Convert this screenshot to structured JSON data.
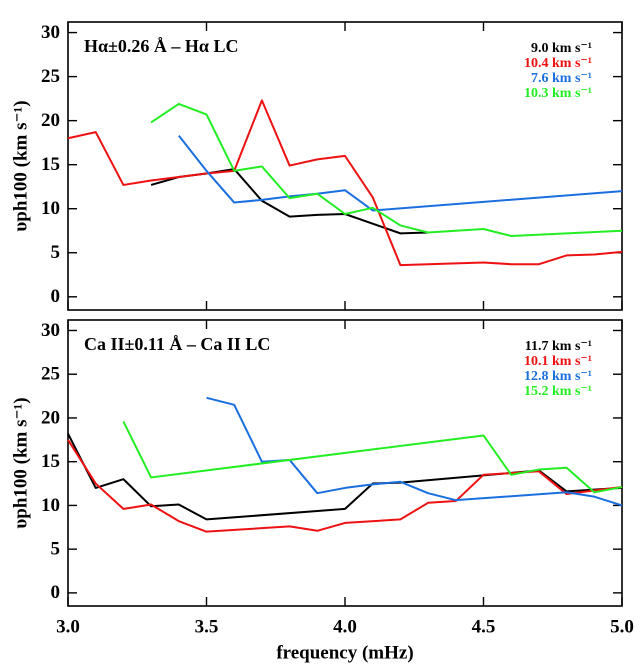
{
  "chart_data": [
    {
      "type": "line",
      "title": "Hα±0.26 Å – Hα LC",
      "ylabel": "υph100 (km s⁻¹)",
      "xlim": [
        3,
        5
      ],
      "xticks": [
        3,
        3.5,
        4,
        4.5,
        5
      ],
      "ylim": [
        -1.5,
        31.2
      ],
      "yticks": [
        0,
        5,
        10,
        15,
        20,
        25,
        30
      ],
      "series": [
        {
          "name": "9.0 km s⁻¹",
          "color": "#000000",
          "x": [
            3.3,
            3.4,
            3.5,
            3.6,
            3.7,
            3.8,
            3.9,
            4.0,
            4.1,
            4.2,
            4.3
          ],
          "values": [
            12.7,
            13.6,
            14.0,
            14.5,
            10.9,
            9.1,
            9.3,
            9.4,
            8.3,
            7.2,
            7.3
          ]
        },
        {
          "name": "10.4 km s⁻¹",
          "color": "#ee1111",
          "x": [
            3.0,
            3.1,
            3.2,
            3.3,
            3.4,
            3.5,
            3.6,
            3.7,
            3.8,
            3.9,
            4.0,
            4.1,
            4.2,
            4.3,
            4.4,
            4.5,
            4.6,
            4.7,
            4.8,
            4.9,
            5.0
          ],
          "values": [
            18.0,
            18.7,
            12.7,
            13.2,
            13.6,
            14.0,
            14.3,
            22.3,
            14.9,
            15.6,
            16.0,
            11.3,
            3.6,
            3.7,
            3.8,
            3.9,
            3.7,
            3.7,
            4.7,
            4.8,
            5.1
          ]
        },
        {
          "name": "7.6 km s⁻¹",
          "color": "#1a6fdf",
          "x": [
            3.4,
            3.5,
            3.6,
            3.7,
            3.8,
            3.9,
            4.0,
            4.1,
            5.0
          ],
          "values": [
            18.3,
            14.3,
            10.7,
            11.0,
            11.4,
            11.7,
            12.1,
            9.8,
            12.0
          ]
        },
        {
          "name": "10.3 km s⁻¹",
          "color": "#22ee22",
          "x": [
            3.3,
            3.4,
            3.5,
            3.6,
            3.7,
            3.8,
            3.9,
            4.0,
            4.1,
            4.2,
            4.3,
            4.5,
            4.6,
            5.0
          ],
          "values": [
            19.8,
            21.9,
            20.7,
            14.3,
            14.8,
            11.2,
            11.7,
            9.4,
            10.1,
            8.1,
            7.3,
            7.7,
            6.9,
            7.5
          ]
        }
      ]
    },
    {
      "type": "line",
      "title": "Ca II±0.11 Å – Ca II LC",
      "ylabel": "υph100 (km s⁻¹)",
      "xlabel": "frequency (mHz)",
      "xlim": [
        3,
        5
      ],
      "xticks": [
        {
          "value": 3,
          "label": "3.0"
        },
        {
          "value": 3.5,
          "label": "3.5"
        },
        {
          "value": 4,
          "label": "4.0"
        },
        {
          "value": 4.5,
          "label": "4.5"
        },
        {
          "value": 5,
          "label": "5.0"
        }
      ],
      "ylim": [
        -1.5,
        31.2
      ],
      "yticks": [
        0,
        5,
        10,
        15,
        20,
        25,
        30
      ],
      "series": [
        {
          "name": "11.7 km s⁻¹",
          "color": "#000000",
          "x": [
            3.0,
            3.1,
            3.2,
            3.3,
            3.4,
            3.5,
            4.0,
            4.1,
            4.2,
            4.7,
            4.8,
            4.9,
            5.0
          ],
          "values": [
            18.2,
            12.0,
            13.0,
            9.9,
            10.1,
            8.4,
            9.6,
            12.5,
            12.6,
            14.0,
            11.6,
            11.8,
            12.0
          ]
        },
        {
          "name": "10.1 km s⁻¹",
          "color": "#ee1111",
          "x": [
            3.0,
            3.1,
            3.2,
            3.3,
            3.4,
            3.5,
            3.8,
            3.9,
            4.0,
            4.2,
            4.3,
            4.4,
            4.5,
            4.7,
            4.8,
            4.9,
            5.0
          ],
          "values": [
            17.5,
            12.5,
            9.6,
            10.1,
            8.2,
            7.0,
            7.6,
            7.1,
            8.0,
            8.4,
            10.3,
            10.5,
            13.5,
            13.9,
            11.3,
            11.7,
            12.1
          ]
        },
        {
          "name": "12.8 km s⁻¹",
          "color": "#1a6fdf",
          "x": [
            3.5,
            3.6,
            3.7,
            3.8,
            3.9,
            4.0,
            4.1,
            4.2,
            4.3,
            4.4,
            4.8,
            4.9,
            5.0
          ],
          "values": [
            22.3,
            21.5,
            15.0,
            15.2,
            11.4,
            12.0,
            12.4,
            12.7,
            11.4,
            10.6,
            11.5,
            11.0,
            10.0
          ]
        },
        {
          "name": "15.2 km s⁻¹",
          "color": "#22ee22",
          "x": [
            3.2,
            3.3,
            4.5,
            4.6,
            4.7,
            4.8,
            4.9,
            5.0
          ],
          "values": [
            19.6,
            13.2,
            18.0,
            13.5,
            14.1,
            14.3,
            11.5,
            12.1
          ]
        }
      ]
    }
  ]
}
